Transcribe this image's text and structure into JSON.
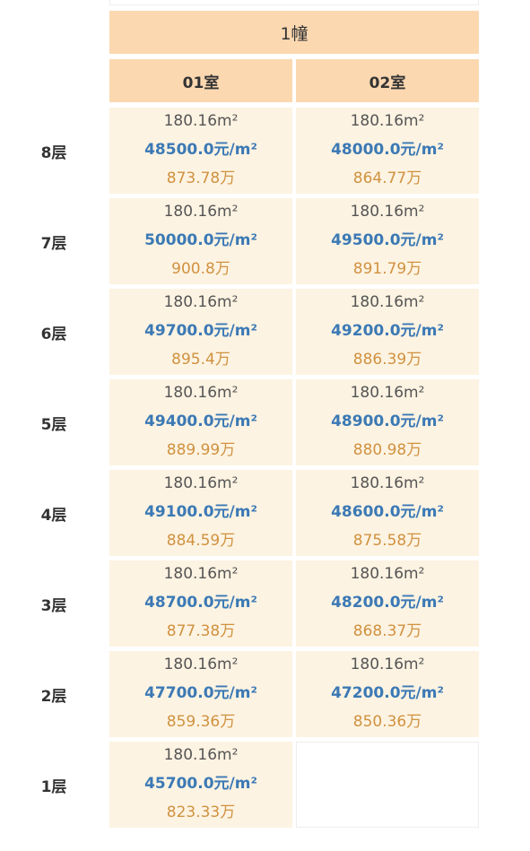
{
  "table": {
    "title": "1幢",
    "columns": [
      "01室",
      "02室"
    ],
    "rows": [
      {
        "floor": "8层",
        "units": [
          {
            "area": "180.16m²",
            "price": "48500.0元/m²",
            "total": "873.78万"
          },
          {
            "area": "180.16m²",
            "price": "48000.0元/m²",
            "total": "864.77万"
          }
        ]
      },
      {
        "floor": "7层",
        "units": [
          {
            "area": "180.16m²",
            "price": "50000.0元/m²",
            "total": "900.8万"
          },
          {
            "area": "180.16m²",
            "price": "49500.0元/m²",
            "total": "891.79万"
          }
        ]
      },
      {
        "floor": "6层",
        "units": [
          {
            "area": "180.16m²",
            "price": "49700.0元/m²",
            "total": "895.4万"
          },
          {
            "area": "180.16m²",
            "price": "49200.0元/m²",
            "total": "886.39万"
          }
        ]
      },
      {
        "floor": "5层",
        "units": [
          {
            "area": "180.16m²",
            "price": "49400.0元/m²",
            "total": "889.99万"
          },
          {
            "area": "180.16m²",
            "price": "48900.0元/m²",
            "total": "880.98万"
          }
        ]
      },
      {
        "floor": "4层",
        "units": [
          {
            "area": "180.16m²",
            "price": "49100.0元/m²",
            "total": "884.59万"
          },
          {
            "area": "180.16m²",
            "price": "48600.0元/m²",
            "total": "875.58万"
          }
        ]
      },
      {
        "floor": "3层",
        "units": [
          {
            "area": "180.16m²",
            "price": "48700.0元/m²",
            "total": "877.38万"
          },
          {
            "area": "180.16m²",
            "price": "48200.0元/m²",
            "total": "868.37万"
          }
        ]
      },
      {
        "floor": "2层",
        "units": [
          {
            "area": "180.16m²",
            "price": "47700.0元/m²",
            "total": "859.36万"
          },
          {
            "area": "180.16m²",
            "price": "47200.0元/m²",
            "total": "850.36万"
          }
        ]
      },
      {
        "floor": "1层",
        "units": [
          {
            "area": "180.16m²",
            "price": "45700.0元/m²",
            "total": "823.33万"
          }
        ]
      }
    ]
  }
}
